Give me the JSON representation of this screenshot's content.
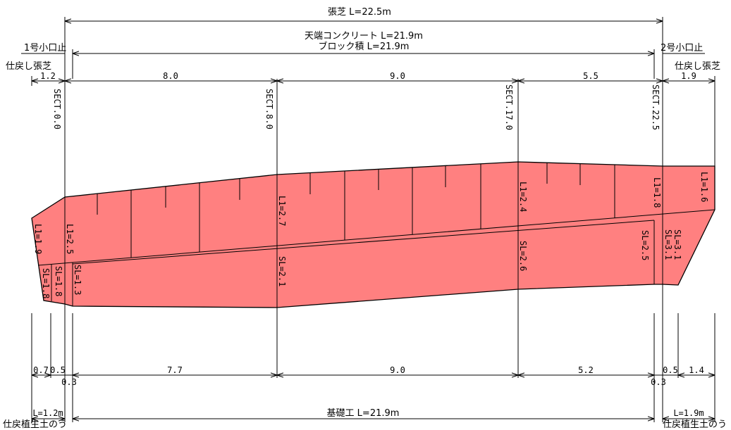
{
  "drawing": {
    "turf_total": "張芝 L=22.5m",
    "crown_concrete": "天端コンクリート L=21.9m",
    "block_masonry": "ブロック積 L=21.9m",
    "left_end_stop": "1号小口止",
    "right_end_stop": "2号小口止",
    "left_restore_turf": "仕戻し張芝",
    "right_restore_turf": "仕戻し張芝",
    "foundation": "基礎工 L=21.9m",
    "left_foundation_length": "L=1.2m",
    "right_foundation_length": "L=1.9m",
    "left_sandbag": "仕戻植生土のう",
    "right_sandbag": "仕戻植生土のう"
  },
  "top_spans": [
    "1.2",
    "8.0",
    "9.0",
    "5.5",
    "1.9"
  ],
  "bottom_spans": [
    "0.7",
    "0.5",
    "0.3",
    "7.7",
    "9.0",
    "5.2",
    "0.3",
    "0.5",
    "1.4"
  ],
  "sections": [
    "SECT.0.0",
    "SECT.8.0",
    "SECT.17.0",
    "SECT.22.5"
  ],
  "wall_labels": [
    "L1=1.9",
    "L1=2.5",
    "SL=1.8",
    "SL=1.8",
    "SL=1.3",
    "L1=2.7",
    "SL=2.1",
    "L1=2.4",
    "SL=2.6",
    "L1=1.8",
    "SL=2.5",
    "SL=3.1",
    "SL=3.1",
    "L1=1.6"
  ],
  "colors": {
    "wall_fill": "#ff8080",
    "line": "#000000",
    "background": "#ffffff"
  }
}
